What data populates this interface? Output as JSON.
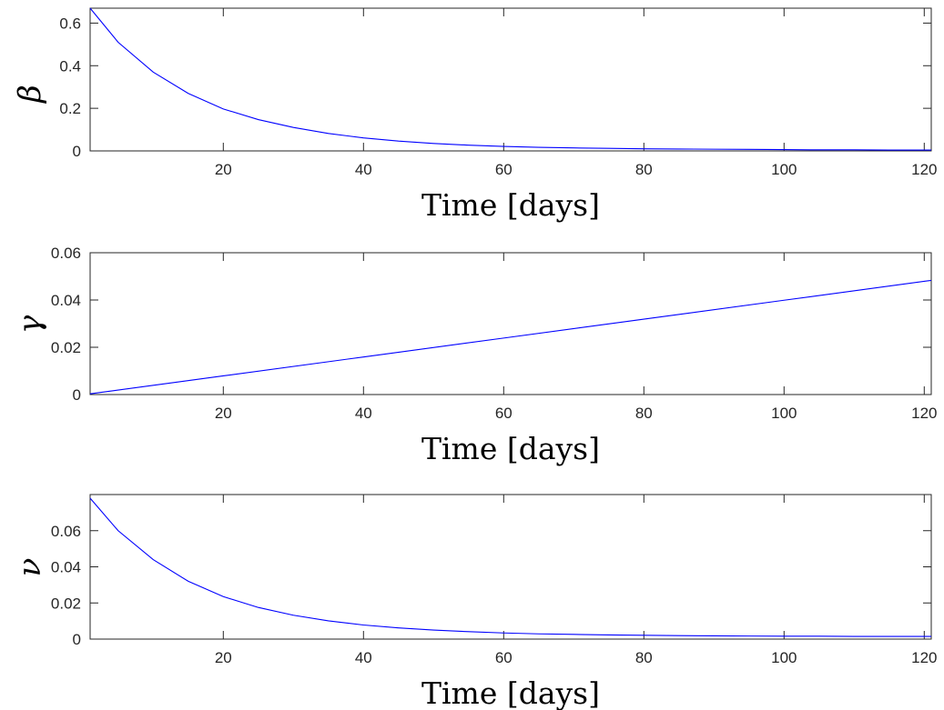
{
  "chart_data": [
    {
      "type": "line",
      "xlabel": "Time [days]",
      "ylabel": "β",
      "xlim": [
        1,
        121
      ],
      "ylim": [
        0,
        0.67
      ],
      "xticks": [
        20,
        40,
        60,
        80,
        100,
        120
      ],
      "yticks": [
        0,
        0.2,
        0.4,
        0.6
      ],
      "ytick_labels": [
        "0",
        "0.2",
        "0.4",
        "0.6"
      ],
      "grid": false,
      "series": [
        {
          "color": "#0000ff",
          "x": [
            1,
            5,
            10,
            15,
            20,
            25,
            30,
            35,
            40,
            45,
            50,
            55,
            60,
            65,
            70,
            75,
            80,
            85,
            90,
            95,
            100,
            105,
            110,
            115,
            120,
            121
          ],
          "y": [
            0.67,
            0.51,
            0.37,
            0.27,
            0.197,
            0.147,
            0.11,
            0.082,
            0.061,
            0.046,
            0.035,
            0.027,
            0.021,
            0.017,
            0.014,
            0.012,
            0.01,
            0.009,
            0.008,
            0.007,
            0.006,
            0.005,
            0.005,
            0.004,
            0.004,
            0.004
          ]
        }
      ]
    },
    {
      "type": "line",
      "xlabel": "Time [days]",
      "ylabel": "γ",
      "xlim": [
        1,
        121
      ],
      "ylim": [
        0,
        0.06
      ],
      "xticks": [
        20,
        40,
        60,
        80,
        100,
        120
      ],
      "yticks": [
        0,
        0.02,
        0.04,
        0.06
      ],
      "ytick_labels": [
        "0",
        "0.02",
        "0.04",
        "0.06"
      ],
      "grid": false,
      "series": [
        {
          "color": "#0000ff",
          "x": [
            1,
            20,
            40,
            60,
            80,
            100,
            121
          ],
          "y": [
            0.0003,
            0.0079,
            0.0159,
            0.0239,
            0.0319,
            0.0399,
            0.0483
          ]
        }
      ]
    },
    {
      "type": "line",
      "xlabel": "Time [days]",
      "ylabel": "ν",
      "xlim": [
        1,
        121
      ],
      "ylim": [
        0,
        0.08
      ],
      "xticks": [
        20,
        40,
        60,
        80,
        100,
        120
      ],
      "yticks": [
        0,
        0.02,
        0.04,
        0.06
      ],
      "ytick_labels": [
        "0",
        "0.02",
        "0.04",
        "0.06"
      ],
      "grid": false,
      "series": [
        {
          "color": "#0000ff",
          "x": [
            1,
            5,
            10,
            15,
            20,
            25,
            30,
            35,
            40,
            45,
            50,
            55,
            60,
            65,
            70,
            75,
            80,
            85,
            90,
            95,
            100,
            105,
            110,
            115,
            120,
            121
          ],
          "y": [
            0.078,
            0.06,
            0.044,
            0.032,
            0.0235,
            0.0175,
            0.0132,
            0.0101,
            0.0078,
            0.0062,
            0.005,
            0.0041,
            0.0034,
            0.0029,
            0.0026,
            0.0023,
            0.0021,
            0.0019,
            0.0018,
            0.0017,
            0.0016,
            0.0016,
            0.0015,
            0.0015,
            0.0015,
            0.0015
          ]
        }
      ]
    }
  ]
}
